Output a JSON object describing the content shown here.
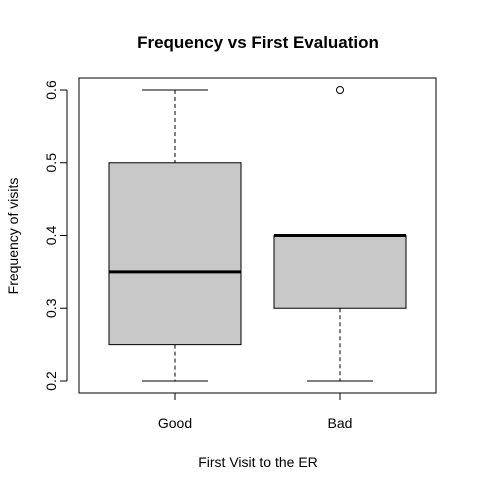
{
  "chart_data": {
    "type": "boxplot",
    "title": "Frequency vs First Evaluation",
    "xlabel": "First Visit to the ER",
    "ylabel": "Frequency of visits",
    "ylim": [
      0.2,
      0.6
    ],
    "yticks": [
      "0.2",
      "0.3",
      "0.4",
      "0.5",
      "0.6"
    ],
    "grid": false,
    "box_color": "#C8C8C8",
    "categories": [
      "Good",
      "Bad"
    ],
    "boxes": [
      {
        "category": "Good",
        "whisker_low": 0.2,
        "q1": 0.25,
        "median": 0.35,
        "q3": 0.5,
        "whisker_high": 0.6,
        "outliers": []
      },
      {
        "category": "Bad",
        "whisker_low": 0.2,
        "q1": 0.3,
        "median": 0.4,
        "q3": 0.4,
        "whisker_high": 0.4,
        "outliers": [
          0.6
        ]
      }
    ]
  }
}
